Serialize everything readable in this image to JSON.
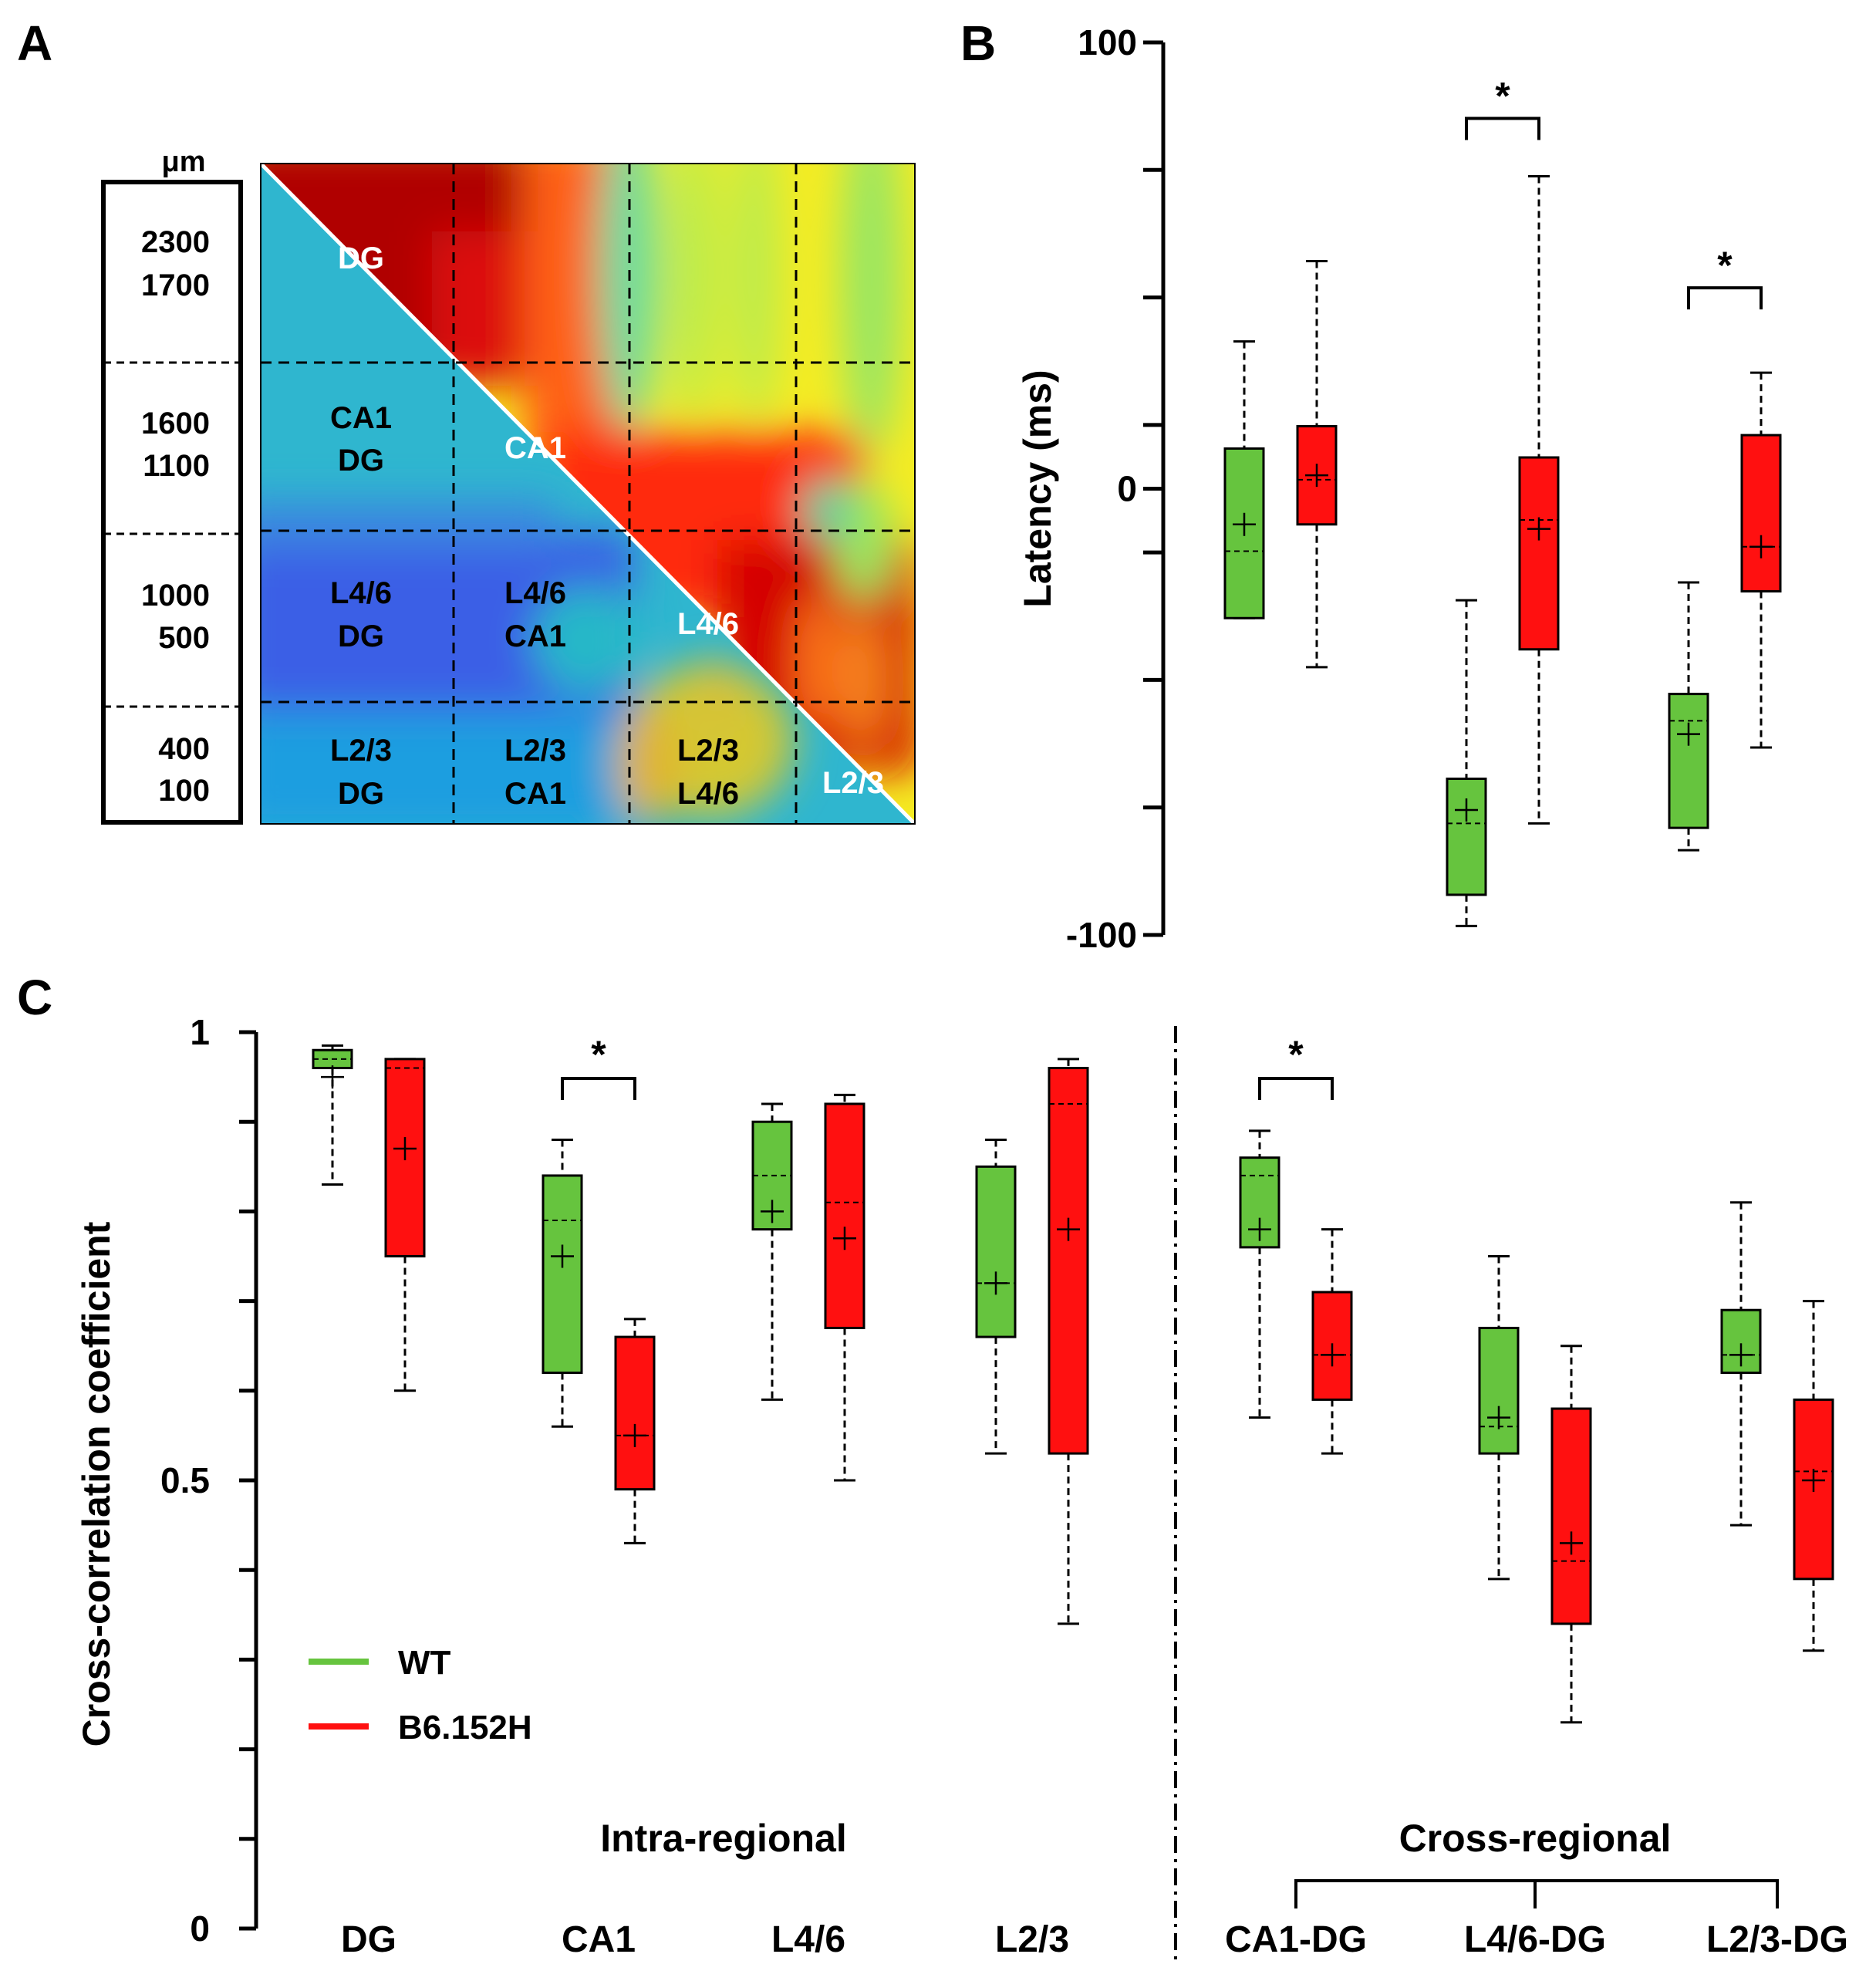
{
  "colors": {
    "wt": "#66c43e",
    "b6": "#ff1010",
    "axis": "#000000"
  },
  "panels": {
    "a": "A",
    "b": "B",
    "c": "C"
  },
  "panel_a": {
    "unit": "μm",
    "depth_labels": [
      [
        "2300",
        "1700"
      ],
      [
        "1600",
        "1100"
      ],
      [
        "1000",
        "500"
      ],
      [
        "400",
        "100"
      ]
    ],
    "diagonal_labels": [
      "DG",
      "CA1",
      "L4/6",
      "L2/3"
    ],
    "pair_labels": [
      {
        "top": "CA1",
        "bottom": "DG"
      },
      {
        "top": "L4/6",
        "bottom": "DG"
      },
      {
        "top": "L4/6",
        "bottom": "CA1"
      },
      {
        "top": "L2/3",
        "bottom": "DG"
      },
      {
        "top": "L2/3",
        "bottom": "CA1"
      },
      {
        "top": "L2/3",
        "bottom": "L4/6"
      }
    ]
  },
  "chart_data": [
    {
      "type": "box",
      "panel": "B",
      "ylabel": "Latency (ms)",
      "ylim": [
        -100,
        100
      ],
      "yticks": [
        100,
        0,
        -100
      ],
      "significance": [
        "*",
        "*"
      ],
      "boxes": [
        {
          "group": 1,
          "series": "WT",
          "min": -29,
          "q1": -29,
          "median": -14,
          "q3": 9,
          "max": 33,
          "mean": -8
        },
        {
          "group": 1,
          "series": "B6.152H",
          "min": -40,
          "q1": -8,
          "median": 2,
          "q3": 14,
          "max": 51,
          "mean": 3
        },
        {
          "group": 2,
          "series": "WT",
          "min": -98,
          "q1": -91,
          "median": -75,
          "q3": -65,
          "max": -25,
          "mean": -72
        },
        {
          "group": 2,
          "series": "B6.152H",
          "min": -75,
          "q1": -36,
          "median": -7,
          "q3": 7,
          "max": 70,
          "mean": -9
        },
        {
          "group": 3,
          "series": "WT",
          "min": -81,
          "q1": -76,
          "median": -52,
          "q3": -46,
          "max": -21,
          "mean": -55
        },
        {
          "group": 3,
          "series": "B6.152H",
          "min": -58,
          "q1": -23,
          "median": -13,
          "q3": 12,
          "max": 26,
          "mean": -13
        }
      ]
    },
    {
      "type": "box",
      "panel": "C",
      "ylabel": "Cross-correlation coefficient",
      "ylim": [
        0,
        1
      ],
      "yticks": [
        1,
        0.5,
        0
      ],
      "ytick_labels": [
        "1",
        "0.5",
        "0"
      ],
      "categories": [
        "DG",
        "CA1",
        "L4/6",
        "L2/3",
        "CA1-DG",
        "L4/6-DG",
        "L2/3-DG"
      ],
      "group_labels": {
        "intra": "Intra-regional",
        "cross": "Cross-regional"
      },
      "significance": [
        "*",
        "*"
      ],
      "legend": [
        "WT",
        "B6.152H"
      ],
      "boxes": [
        {
          "category": "DG",
          "series": "WT",
          "min": 0.83,
          "q1": 0.96,
          "median": 0.97,
          "q3": 0.98,
          "max": 0.985,
          "mean": 0.95
        },
        {
          "category": "DG",
          "series": "B6.152H",
          "min": 0.6,
          "q1": 0.75,
          "median": 0.96,
          "q3": 0.97,
          "max": 0.97,
          "mean": 0.87
        },
        {
          "category": "CA1",
          "series": "WT",
          "min": 0.56,
          "q1": 0.62,
          "median": 0.79,
          "q3": 0.84,
          "max": 0.88,
          "mean": 0.75
        },
        {
          "category": "CA1",
          "series": "B6.152H",
          "min": 0.43,
          "q1": 0.49,
          "median": 0.55,
          "q3": 0.66,
          "max": 0.68,
          "mean": 0.55
        },
        {
          "category": "L4/6",
          "series": "WT",
          "min": 0.59,
          "q1": 0.78,
          "median": 0.84,
          "q3": 0.9,
          "max": 0.92,
          "mean": 0.8
        },
        {
          "category": "L4/6",
          "series": "B6.152H",
          "min": 0.5,
          "q1": 0.67,
          "median": 0.81,
          "q3": 0.92,
          "max": 0.93,
          "mean": 0.77
        },
        {
          "category": "L2/3",
          "series": "WT",
          "min": 0.53,
          "q1": 0.66,
          "median": 0.72,
          "q3": 0.85,
          "max": 0.88,
          "mean": 0.72
        },
        {
          "category": "L2/3",
          "series": "B6.152H",
          "min": 0.34,
          "q1": 0.53,
          "median": 0.92,
          "q3": 0.96,
          "max": 0.97,
          "mean": 0.78
        },
        {
          "category": "CA1-DG",
          "series": "WT",
          "min": 0.57,
          "q1": 0.76,
          "median": 0.84,
          "q3": 0.86,
          "max": 0.89,
          "mean": 0.78
        },
        {
          "category": "CA1-DG",
          "series": "B6.152H",
          "min": 0.53,
          "q1": 0.59,
          "median": 0.64,
          "q3": 0.71,
          "max": 0.78,
          "mean": 0.64
        },
        {
          "category": "L4/6-DG",
          "series": "WT",
          "min": 0.39,
          "q1": 0.53,
          "median": 0.56,
          "q3": 0.67,
          "max": 0.75,
          "mean": 0.57
        },
        {
          "category": "L4/6-DG",
          "series": "B6.152H",
          "min": 0.23,
          "q1": 0.34,
          "median": 0.41,
          "q3": 0.58,
          "max": 0.65,
          "mean": 0.43
        },
        {
          "category": "L2/3-DG",
          "series": "WT",
          "min": 0.45,
          "q1": 0.62,
          "median": 0.64,
          "q3": 0.69,
          "max": 0.81,
          "mean": 0.64
        },
        {
          "category": "L2/3-DG",
          "series": "B6.152H",
          "min": 0.31,
          "q1": 0.39,
          "median": 0.51,
          "q3": 0.59,
          "max": 0.7,
          "mean": 0.5
        }
      ]
    }
  ]
}
